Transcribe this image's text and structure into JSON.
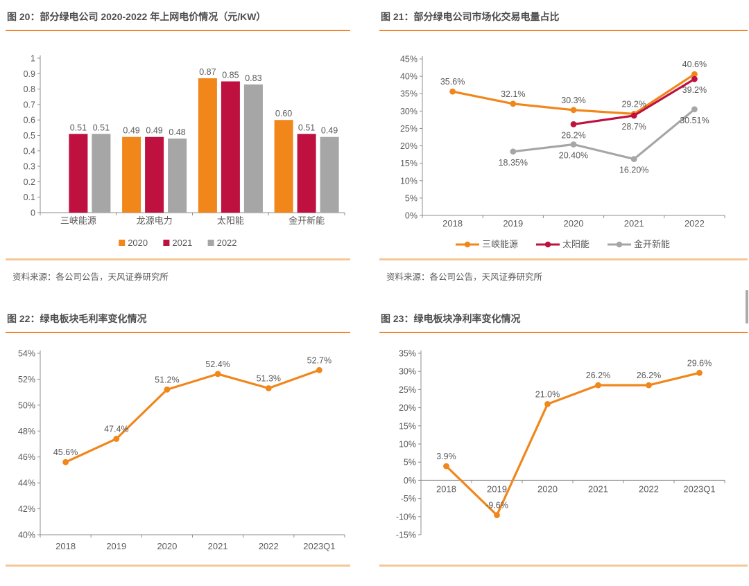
{
  "page": {
    "background": "#FFFFFF"
  },
  "colors": {
    "orange": "#F1861B",
    "crimson": "#BE1140",
    "gray": "#A6A6A6",
    "axis": "#8C8C8C",
    "text": "#595959",
    "title_underline": "#EF8733",
    "panel_border": "#F5C795",
    "scrollbar": "#ABABAB"
  },
  "source_note": "资料来源：各公司公告，天风证券研究所",
  "chart_data": [
    {
      "type": "bar",
      "title": "图 20：部分绿电公司 2020-2022 年上网电价情况（元/KW）",
      "categories": [
        "三峡能源",
        "龙源电力",
        "太阳能",
        "金开新能"
      ],
      "series": [
        {
          "name": "2020",
          "color": "#F1861B",
          "values": [
            null,
            0.49,
            0.87,
            0.6
          ],
          "labels": [
            "",
            "0.49",
            "0.87",
            "0.60"
          ]
        },
        {
          "name": "2021",
          "color": "#BE1140",
          "values": [
            0.51,
            0.49,
            0.85,
            0.51
          ],
          "labels": [
            "0.51",
            "0.49",
            "0.85",
            "0.51"
          ]
        },
        {
          "name": "2022",
          "color": "#A6A6A6",
          "values": [
            0.51,
            0.48,
            0.83,
            0.49
          ],
          "labels": [
            "0.51",
            "0.48",
            "0.83",
            "0.49"
          ]
        }
      ],
      "ylim": [
        0,
        1
      ],
      "ytick_vals": [
        0,
        0.1,
        0.2,
        0.3,
        0.4,
        0.5,
        0.6,
        0.7,
        0.8,
        0.9,
        1
      ],
      "ytick_labels": [
        "0",
        "0.1",
        "0.2",
        "0.3",
        "0.4",
        "0.5",
        "0.6",
        "0.7",
        "0.8",
        "0.9",
        "1"
      ],
      "legend": true,
      "legend_position": "bottom",
      "grid": false
    },
    {
      "type": "line",
      "title": "图 21：部分绿电公司市场化交易电量占比",
      "x": [
        "2018",
        "2019",
        "2020",
        "2021",
        "2022"
      ],
      "series": [
        {
          "name": "三峡能源",
          "color": "#F1861B",
          "values": [
            35.6,
            32.1,
            30.3,
            29.2,
            40.6
          ],
          "labels": [
            "35.6%",
            "32.1%",
            "30.3%",
            "29.2%",
            "40.6%"
          ],
          "label_side": "above"
        },
        {
          "name": "太阳能",
          "color": "#BE1140",
          "values": [
            null,
            null,
            26.2,
            28.7,
            39.2
          ],
          "labels": [
            "",
            "",
            "26.2%",
            "28.7%",
            "39.2%"
          ],
          "label_side": "below"
        },
        {
          "name": "金开新能",
          "color": "#A6A6A6",
          "values": [
            null,
            18.35,
            20.4,
            16.2,
            30.51
          ],
          "labels": [
            "",
            "18.35%",
            "20.40%",
            "16.20%",
            "30.51%"
          ],
          "label_side": "below"
        }
      ],
      "ylim": [
        0,
        45
      ],
      "ytick_vals": [
        0,
        5,
        10,
        15,
        20,
        25,
        30,
        35,
        40,
        45
      ],
      "ytick_labels": [
        "0%",
        "5%",
        "10%",
        "15%",
        "20%",
        "25%",
        "30%",
        "35%",
        "40%",
        "45%"
      ],
      "legend": true,
      "legend_position": "bottom",
      "grid": false
    },
    {
      "type": "line",
      "title": "图 22：绿电板块毛利率变化情况",
      "x": [
        "2018",
        "2019",
        "2020",
        "2021",
        "2022",
        "2023Q1"
      ],
      "series": [
        {
          "color": "#F1861B",
          "values": [
            45.6,
            47.4,
            51.2,
            52.4,
            51.3,
            52.7
          ],
          "labels": [
            "45.6%",
            "47.4%",
            "51.2%",
            "52.4%",
            "51.3%",
            "52.7%"
          ],
          "label_side": "above"
        }
      ],
      "ylim": [
        40,
        54
      ],
      "ytick_vals": [
        40,
        42,
        44,
        46,
        48,
        50,
        52,
        54
      ],
      "ytick_labels": [
        "40%",
        "42%",
        "44%",
        "46%",
        "48%",
        "50%",
        "52%",
        "54%"
      ],
      "legend": false,
      "grid": false
    },
    {
      "type": "line",
      "title": "图 23：绿电板块净利率变化情况",
      "x": [
        "2018",
        "2019",
        "2020",
        "2021",
        "2022",
        "2023Q1"
      ],
      "series": [
        {
          "color": "#F1861B",
          "values": [
            3.9,
            -9.6,
            21.0,
            26.2,
            26.2,
            29.6
          ],
          "labels": [
            "3.9%",
            "-9.6%",
            "21.0%",
            "26.2%",
            "26.2%",
            "29.6%"
          ],
          "label_side": "above"
        }
      ],
      "ylim": [
        -15,
        35
      ],
      "ytick_vals": [
        -15,
        -10,
        -5,
        0,
        5,
        10,
        15,
        20,
        25,
        30,
        35
      ],
      "ytick_labels": [
        "-15%",
        "-10%",
        "-5%",
        "0%",
        "5%",
        "10%",
        "15%",
        "20%",
        "25%",
        "30%",
        "35%"
      ],
      "xlabel_at_zero": true,
      "legend": false,
      "grid": false
    }
  ]
}
